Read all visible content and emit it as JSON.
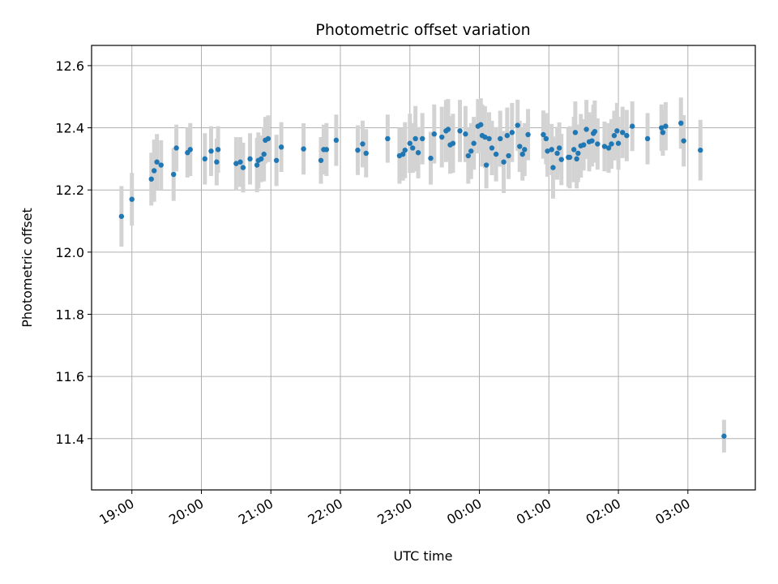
{
  "chart_data": {
    "type": "scatter",
    "title": "Photometric offset variation",
    "xlabel": "UTC time",
    "ylabel": "Photometric offset",
    "x_tick_labels": [
      "19:00",
      "20:00",
      "21:00",
      "22:00",
      "23:00",
      "00:00",
      "01:00",
      "02:00",
      "03:00"
    ],
    "x_tick_hours": [
      19,
      20,
      21,
      22,
      23,
      24,
      25,
      26,
      27
    ],
    "xlim_hours": [
      18.42,
      27.97
    ],
    "ylim": [
      11.235,
      12.665
    ],
    "y_ticks": [
      11.4,
      11.6,
      11.8,
      12.0,
      12.2,
      12.4,
      12.6
    ],
    "grid": true,
    "colors": {
      "marker": "#1f77b4",
      "errorbar": "#d3d3d3",
      "grid": "#b0b0b0"
    },
    "series": [
      {
        "points": [
          [
            18.85,
            12.115,
            0.195
          ],
          [
            19.0,
            12.17,
            0.17
          ],
          [
            19.28,
            12.235,
            0.17
          ],
          [
            19.32,
            12.262,
            0.2
          ],
          [
            19.36,
            12.29,
            0.18
          ],
          [
            19.42,
            12.28,
            0.16
          ],
          [
            19.6,
            12.25,
            0.17
          ],
          [
            19.64,
            12.335,
            0.15
          ],
          [
            19.8,
            12.32,
            0.16
          ],
          [
            19.84,
            12.33,
            0.17
          ],
          [
            20.05,
            12.3,
            0.165
          ],
          [
            20.14,
            12.325,
            0.16
          ],
          [
            20.22,
            12.29,
            0.15
          ],
          [
            20.24,
            12.33,
            0.15
          ],
          [
            20.5,
            12.285,
            0.17
          ],
          [
            20.56,
            12.29,
            0.16
          ],
          [
            20.6,
            12.272,
            0.16
          ],
          [
            20.7,
            12.3,
            0.165
          ],
          [
            20.8,
            12.28,
            0.175
          ],
          [
            20.82,
            12.295,
            0.18
          ],
          [
            20.86,
            12.3,
            0.15
          ],
          [
            20.9,
            12.315,
            0.175
          ],
          [
            20.92,
            12.36,
            0.15
          ],
          [
            20.96,
            12.365,
            0.15
          ],
          [
            21.08,
            12.295,
            0.165
          ],
          [
            21.15,
            12.338,
            0.16
          ],
          [
            21.47,
            12.332,
            0.165
          ],
          [
            21.72,
            12.295,
            0.15
          ],
          [
            21.76,
            12.33,
            0.16
          ],
          [
            21.8,
            12.33,
            0.17
          ],
          [
            21.94,
            12.36,
            0.165
          ],
          [
            22.25,
            12.328,
            0.16
          ],
          [
            22.32,
            12.348,
            0.15
          ],
          [
            22.37,
            12.318,
            0.155
          ],
          [
            22.68,
            12.365,
            0.155
          ],
          [
            22.85,
            12.31,
            0.18
          ],
          [
            22.9,
            12.315,
            0.17
          ],
          [
            22.93,
            12.328,
            0.18
          ],
          [
            23.0,
            12.35,
            0.19
          ],
          [
            23.04,
            12.335,
            0.16
          ],
          [
            23.08,
            12.365,
            0.21
          ],
          [
            23.12,
            12.32,
            0.165
          ],
          [
            23.18,
            12.365,
            0.165
          ],
          [
            23.3,
            12.302,
            0.17
          ],
          [
            23.35,
            12.38,
            0.19
          ],
          [
            23.46,
            12.37,
            0.195
          ],
          [
            23.52,
            12.39,
            0.2
          ],
          [
            23.55,
            12.395,
            0.195
          ],
          [
            23.58,
            12.345,
            0.185
          ],
          [
            23.62,
            12.35,
            0.19
          ],
          [
            23.72,
            12.39,
            0.2
          ],
          [
            23.8,
            12.38,
            0.18
          ],
          [
            23.84,
            12.31,
            0.18
          ],
          [
            23.88,
            12.325,
            0.18
          ],
          [
            23.92,
            12.35,
            0.17
          ],
          [
            23.98,
            12.405,
            0.175
          ],
          [
            24.02,
            12.41,
            0.17
          ],
          [
            24.04,
            12.375,
            0.2
          ],
          [
            24.1,
            12.28,
            0.15
          ],
          [
            24.08,
            12.37,
            0.2
          ],
          [
            24.14,
            12.365,
            0.17
          ],
          [
            24.18,
            12.335,
            0.175
          ],
          [
            24.24,
            12.315,
            0.175
          ],
          [
            24.3,
            12.365,
            0.18
          ],
          [
            24.35,
            12.29,
            0.2
          ],
          [
            24.4,
            12.375,
            0.18
          ],
          [
            24.42,
            12.31,
            0.15
          ],
          [
            24.47,
            12.385,
            0.19
          ],
          [
            24.55,
            12.408,
            0.165
          ],
          [
            24.58,
            12.34,
            0.165
          ],
          [
            24.62,
            12.315,
            0.17
          ],
          [
            24.65,
            12.33,
            0.17
          ],
          [
            24.7,
            12.378,
            0.165
          ],
          [
            24.92,
            12.378,
            0.155
          ],
          [
            24.96,
            12.365,
            0.165
          ],
          [
            24.98,
            12.325,
            0.165
          ],
          [
            25.04,
            12.33,
            0.165
          ],
          [
            25.06,
            12.272,
            0.2
          ],
          [
            25.12,
            12.318,
            0.17
          ],
          [
            25.15,
            12.335,
            0.165
          ],
          [
            25.18,
            12.298,
            0.165
          ],
          [
            25.28,
            12.305,
            0.19
          ],
          [
            25.3,
            12.305,
            0.2
          ],
          [
            25.36,
            12.33,
            0.21
          ],
          [
            25.38,
            12.385,
            0.2
          ],
          [
            25.4,
            12.3,
            0.19
          ],
          [
            25.42,
            12.318,
            0.185
          ],
          [
            25.46,
            12.342,
            0.205
          ],
          [
            25.5,
            12.345,
            0.165
          ],
          [
            25.54,
            12.395,
            0.19
          ],
          [
            25.58,
            12.355,
            0.19
          ],
          [
            25.62,
            12.358,
            0.165
          ],
          [
            25.64,
            12.382,
            0.185
          ],
          [
            25.66,
            12.388,
            0.2
          ],
          [
            25.7,
            12.348,
            0.165
          ],
          [
            25.8,
            12.34,
            0.16
          ],
          [
            25.86,
            12.335,
            0.16
          ],
          [
            25.9,
            12.348,
            0.16
          ],
          [
            25.94,
            12.375,
            0.16
          ],
          [
            25.98,
            12.39,
            0.18
          ],
          [
            26.0,
            12.35,
            0.17
          ],
          [
            26.06,
            12.385,
            0.165
          ],
          [
            26.12,
            12.375,
            0.165
          ],
          [
            26.2,
            12.405,
            0.16
          ],
          [
            26.42,
            12.365,
            0.165
          ],
          [
            26.62,
            12.4,
            0.15
          ],
          [
            26.64,
            12.385,
            0.15
          ],
          [
            26.68,
            12.405,
            0.155
          ],
          [
            26.9,
            12.415,
            0.165
          ],
          [
            26.94,
            12.358,
            0.165
          ],
          [
            27.18,
            12.328,
            0.195
          ],
          [
            27.52,
            11.408,
            0.105
          ]
        ]
      }
    ]
  }
}
